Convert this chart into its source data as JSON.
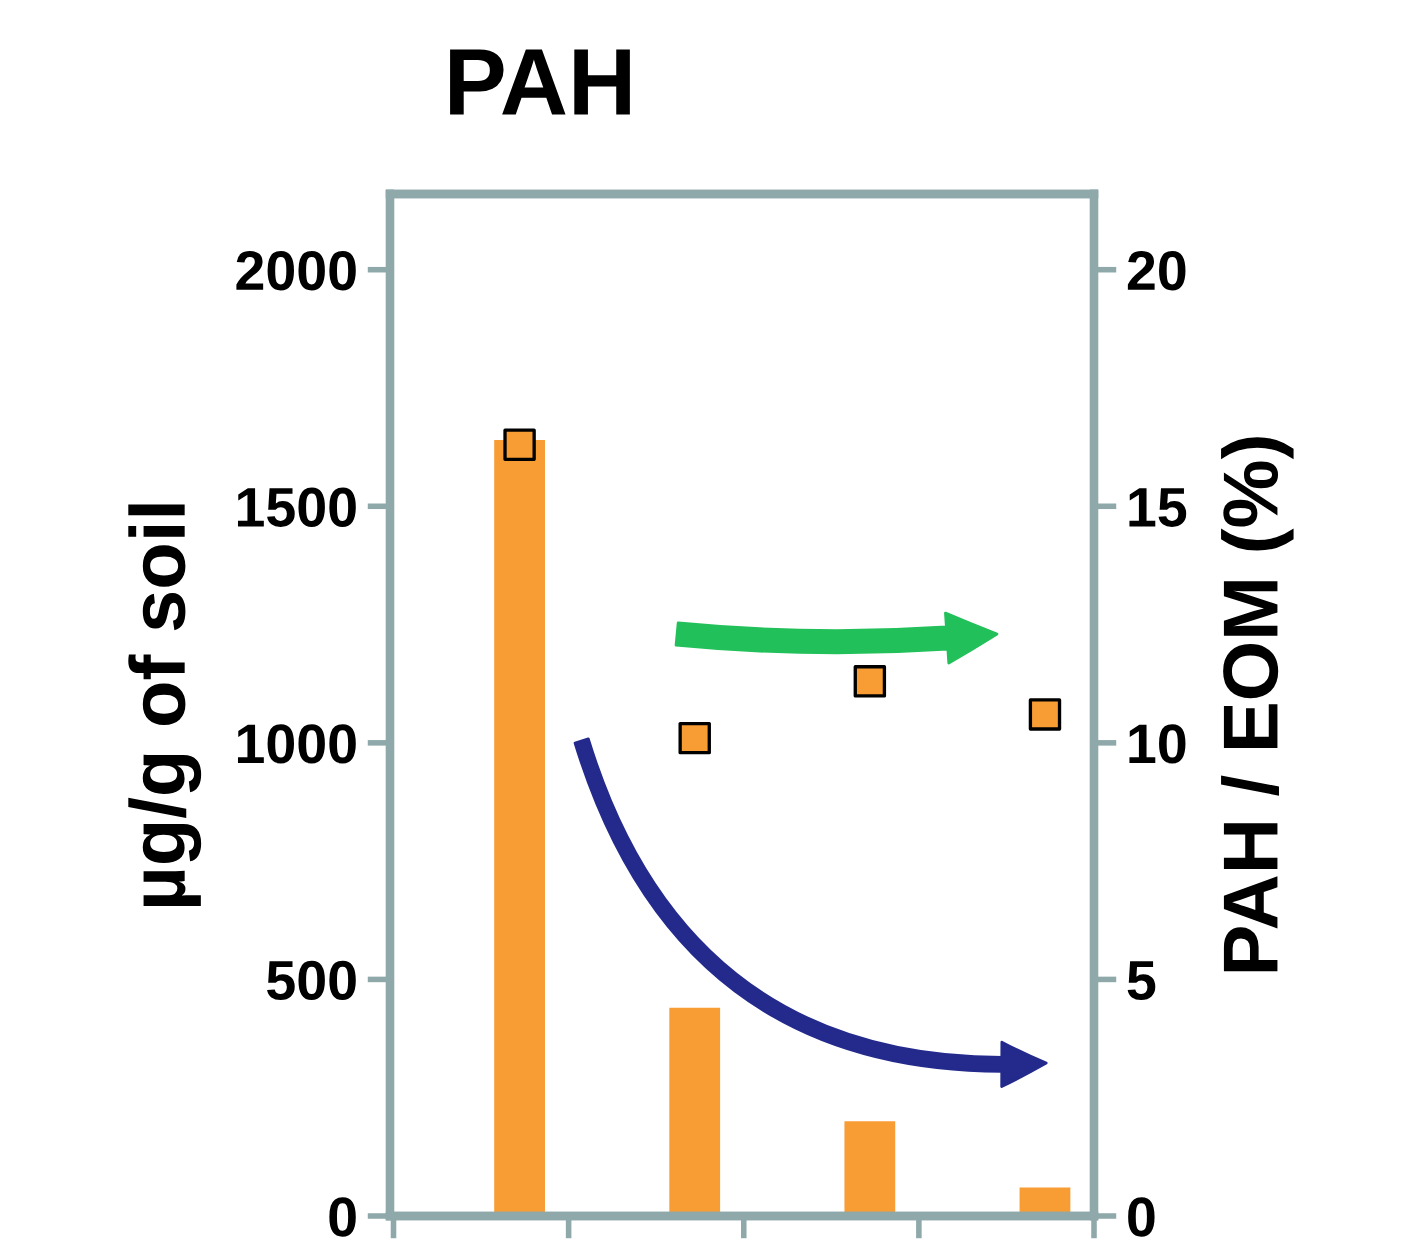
{
  "chart_data": {
    "type": "bar",
    "title": "PAH",
    "ylabel": "µg/g of soil",
    "y2label": "PAH / EOM (%)",
    "categories": [
      null,
      null,
      null,
      null
    ],
    "series": [
      {
        "color": "#f89c34",
        "values": [
          1640,
          440,
          200,
          60
        ]
      },
      {
        "type": "scatter",
        "axis": "y2",
        "color": "#f89c34",
        "marker": "square",
        "values": [
          16.3,
          10.1,
          11.3,
          10.6
        ]
      }
    ],
    "ylim": [
      0,
      2160
    ],
    "yticks": [
      0,
      500,
      1000,
      1500,
      2000
    ],
    "y2lim": [
      0,
      21.6
    ],
    "y2ticks": [
      0,
      5,
      10,
      15,
      20
    ],
    "grid": false,
    "legend": false
  }
}
